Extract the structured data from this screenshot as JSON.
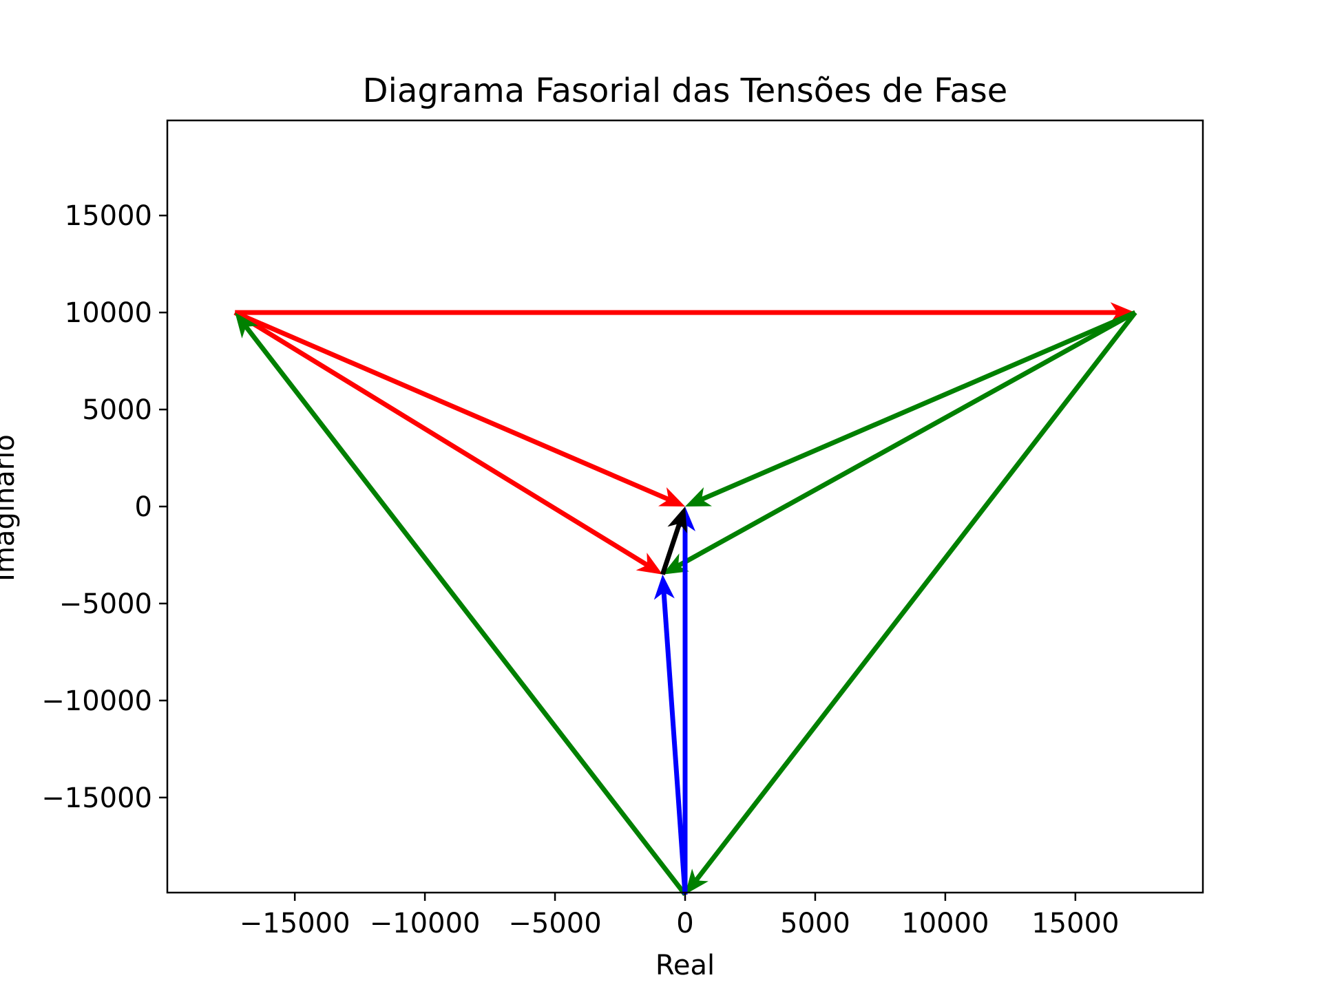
{
  "chart_data": {
    "type": "quiver",
    "title": "Diagrama Fasorial das Tensões de Fase",
    "xlabel": "Real",
    "ylabel": "Imaginário",
    "xlim": [
      -19900,
      19900
    ],
    "ylim": [
      -19900,
      19900
    ],
    "xticks": [
      {
        "value": -15000,
        "label": "−15000"
      },
      {
        "value": -10000,
        "label": "−10000"
      },
      {
        "value": -5000,
        "label": "−5000"
      },
      {
        "value": 0,
        "label": "0"
      },
      {
        "value": 5000,
        "label": "5000"
      },
      {
        "value": 10000,
        "label": "10000"
      },
      {
        "value": 15000,
        "label": "15000"
      }
    ],
    "yticks": [
      {
        "value": -15000,
        "label": "−15000"
      },
      {
        "value": -10000,
        "label": "−10000"
      },
      {
        "value": -5000,
        "label": "−5000"
      },
      {
        "value": 0,
        "label": "0"
      },
      {
        "value": 5000,
        "label": "5000"
      },
      {
        "value": 10000,
        "label": "10000"
      },
      {
        "value": 15000,
        "label": "15000"
      }
    ],
    "grid": false,
    "legend": false,
    "arrows": [
      {
        "color": "#ff0000",
        "x0": -17300,
        "y0": 10000,
        "x1": 17300,
        "y1": 10000
      },
      {
        "color": "#ff0000",
        "x0": -17300,
        "y0": 10000,
        "x1": 0,
        "y1": 0
      },
      {
        "color": "#ff0000",
        "x0": -17300,
        "y0": 10000,
        "x1": -866,
        "y1": -3500
      },
      {
        "color": "#008000",
        "x0": 17300,
        "y0": 10000,
        "x1": 0,
        "y1": 0
      },
      {
        "color": "#008000",
        "x0": 17300,
        "y0": 10000,
        "x1": -866,
        "y1": -3500
      },
      {
        "color": "#008000",
        "x0": 17300,
        "y0": 10000,
        "x1": 0,
        "y1": -20000
      },
      {
        "color": "#008000",
        "x0": 0,
        "y0": -20000,
        "x1": -17300,
        "y1": 10000
      },
      {
        "color": "#0000ff",
        "x0": 0,
        "y0": -20000,
        "x1": 0,
        "y1": 0
      },
      {
        "color": "#0000ff",
        "x0": 0,
        "y0": -20000,
        "x1": -866,
        "y1": -3500
      },
      {
        "color": "#000000",
        "x0": -866,
        "y0": -3500,
        "x1": 0,
        "y1": 0
      }
    ]
  }
}
